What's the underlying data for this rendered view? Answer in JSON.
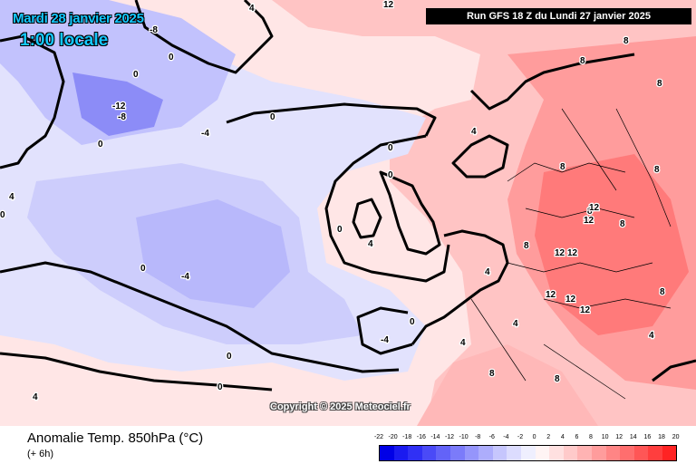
{
  "header": {
    "date": "Mardi 28 janvier 2025",
    "time": "1:00 locale",
    "run": "Run GFS 18 Z du Lundi 27 janvier 2025"
  },
  "copyright": "Copyright © 2025 Meteociel.fr",
  "footer": {
    "title": "Anomalie Temp. 850hPa (°C)",
    "subtitle": "(+ 6h)"
  },
  "legend": {
    "labels": [
      "-22",
      "-20",
      "-18",
      "-16",
      "-14",
      "-12",
      "-10",
      "-8",
      "-6",
      "-4",
      "-2",
      "0",
      "2",
      "4",
      "6",
      "8",
      "10",
      "12",
      "14",
      "16",
      "18",
      "20"
    ],
    "colors": [
      "#0000e6",
      "#1a1af0",
      "#3030f5",
      "#4a4af7",
      "#6363f8",
      "#7b7bfa",
      "#9595fb",
      "#adadfc",
      "#c6c6fd",
      "#dcdcfe",
      "#efeffe",
      "#fff4f4",
      "#ffe0e0",
      "#ffcaca",
      "#ffb3b3",
      "#ff9c9c",
      "#ff8585",
      "#ff6e6e",
      "#ff5656",
      "#ff3e3e",
      "#ff2323"
    ]
  },
  "map_labels": {
    "contour_values": [
      "-12",
      "-8",
      "-8",
      "-4",
      "-4",
      "-4",
      "0",
      "0",
      "0",
      "0",
      "0",
      "0",
      "0",
      "0",
      "0",
      "0",
      "0",
      "0",
      "4",
      "4",
      "4",
      "4",
      "4",
      "4",
      "4",
      "4",
      "4",
      "8",
      "8",
      "8",
      "8",
      "8",
      "8",
      "8",
      "8",
      "8",
      "8",
      "8",
      "12",
      "12",
      "12",
      "12",
      "12",
      "12",
      "12",
      "12"
    ]
  },
  "colors": {
    "title_accent": "#14c8ff",
    "cold_light": "#dcdcfe",
    "cold_mid": "#c6c6fd",
    "cold_strong": "#9595fb",
    "warm_light": "#ffe0e0",
    "warm_mid": "#ffb3b3",
    "warm_strong": "#ff6e6e"
  }
}
